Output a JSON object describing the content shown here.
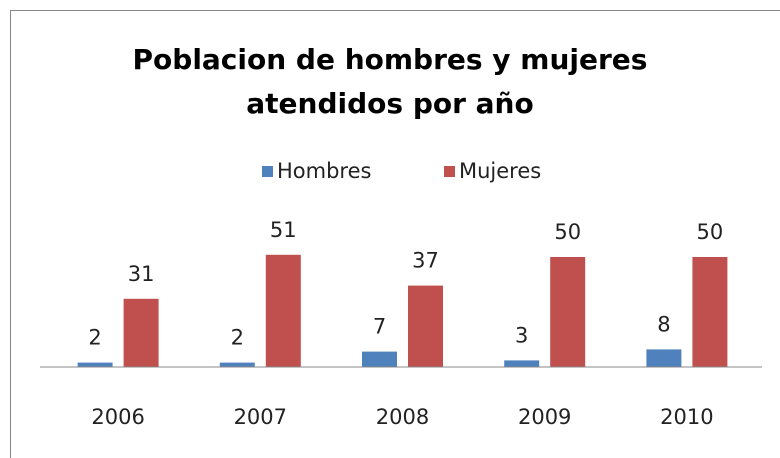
{
  "chart_data": {
    "type": "bar",
    "title": "Poblacion de hombres y mujeres atendidos por año",
    "categories": [
      "2006",
      "2007",
      "2008",
      "2009",
      "2010"
    ],
    "series": [
      {
        "name": "Hombres",
        "color": "#4f81bd",
        "values": [
          2,
          2,
          7,
          3,
          8
        ]
      },
      {
        "name": "Mujeres",
        "color": "#c0504d",
        "values": [
          31,
          51,
          37,
          50,
          50
        ]
      }
    ],
    "ylim": [
      0,
      60
    ],
    "legend": "top"
  }
}
